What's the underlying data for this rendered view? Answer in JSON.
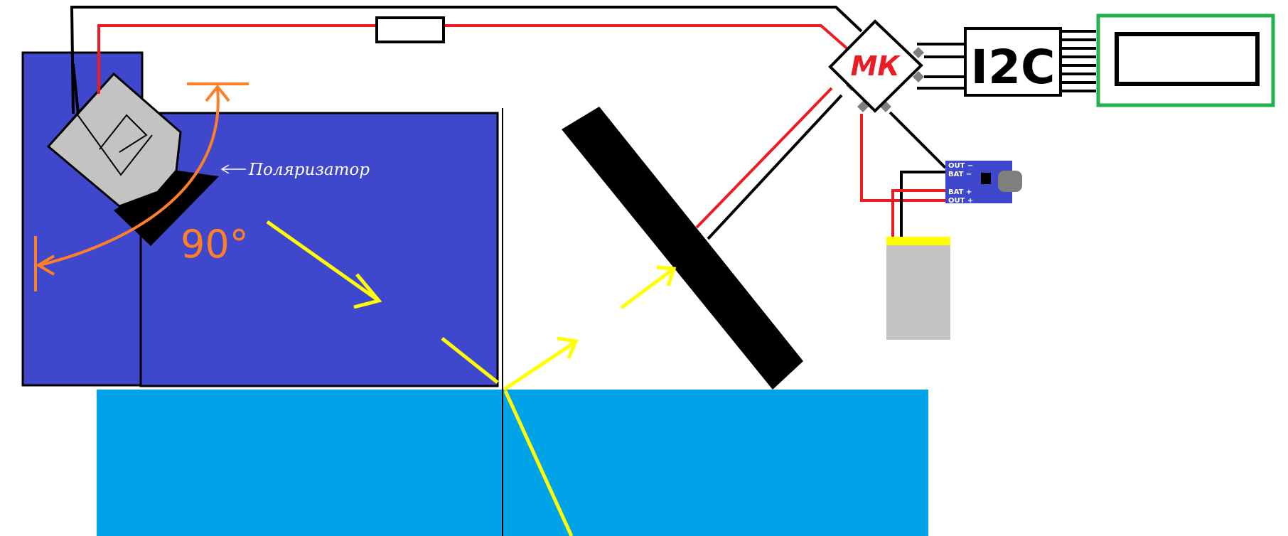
{
  "labels": {
    "microcontroller": "МК",
    "i2c": "I2C",
    "polarizer": "Поляризатор",
    "angle": "90°",
    "charger_pins": [
      "OUT −",
      "BAT −",
      "BAT +",
      "OUT +"
    ]
  },
  "colors": {
    "left_block": "#3f48cc",
    "water": "#00a2e8",
    "light_ray": "#ffff00",
    "wire_red": "#ed1c24",
    "wire_black": "#000000",
    "rotation_arrow": "#ff7f27",
    "display_frame": "#22b14c",
    "battery_body": "#c3c3c3",
    "battery_terminal": "#ffff00",
    "polarizer_body": "#c3c3c3",
    "pin_gray": "#7f7f7f"
  }
}
